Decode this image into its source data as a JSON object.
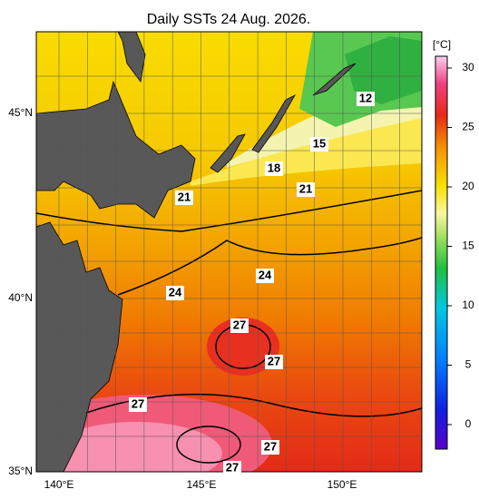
{
  "title": "Daily SSTs 24 Aug. 2026.",
  "lat_labels": [
    "45°N",
    "40°N",
    "35°N"
  ],
  "lon_labels": [
    "140°E",
    "145°E",
    "150°E"
  ],
  "colorbar": {
    "unit": "[°C]",
    "ticks": [
      0,
      5,
      10,
      15,
      20,
      25,
      30
    ]
  },
  "contour_labels": [
    12,
    15,
    18,
    21,
    21,
    24,
    24,
    27,
    27,
    27,
    27,
    27
  ]
}
